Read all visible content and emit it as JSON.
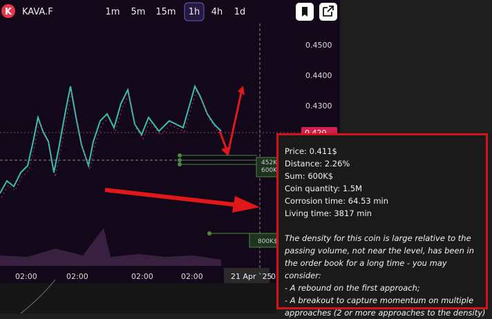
{
  "header": {
    "logo": "K",
    "symbol": "KAVA.F",
    "timeframes": [
      "1m",
      "5m",
      "15m",
      "1h",
      "4h",
      "1d"
    ],
    "active_timeframe": 3
  },
  "price_axis": {
    "labels": [
      "0.4500",
      "0.4400",
      "0.4300",
      "0.420"
    ],
    "current": "0.420"
  },
  "order_labels": [
    "452K",
    "600K",
    "800K$"
  ],
  "time_axis": {
    "labels": [
      "02:00",
      "02:00",
      "02:00",
      "02:00"
    ],
    "crosshair": "21 Apr `25",
    "next": "0"
  },
  "tooltip": {
    "lines": [
      "Price: 0.411$",
      "Distance: 2.26%",
      "Sum: 600K$",
      "Coin quantity: 1.5M",
      "Corrosion time: 64.53 min",
      "Living time: 3817 min"
    ],
    "note": "The density for this coin is large relative to the passing volume, not near the level, has been in the order book for a long time - you may consider:",
    "options": [
      "- A rebound on the first approach;",
      "- A breakout to capture momentum on multiple approaches (2 or more approaches to the density)"
    ]
  }
}
